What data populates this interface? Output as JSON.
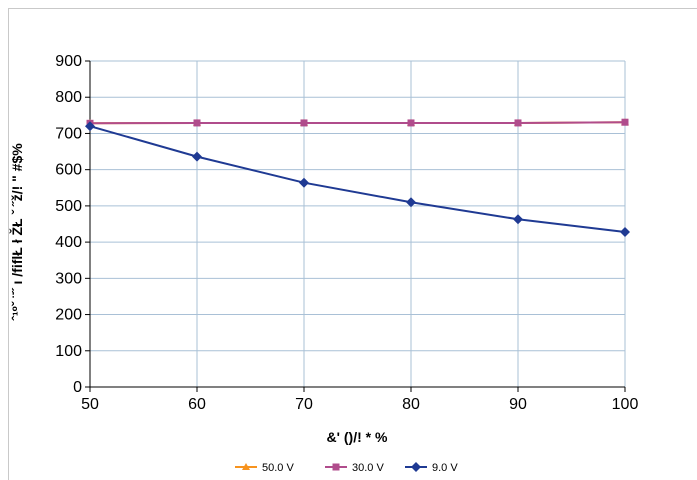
{
  "chart_data": {
    "type": "line",
    "title": "",
    "xlabel": "&' ()/! * %",
    "ylabel": "ˆ¹ºˇ ¨˝ ı /fiflŁ ł ŽŁ ˇ ˝ž/! \" #$%",
    "x": [
      50,
      60,
      70,
      80,
      90,
      100
    ],
    "xlim": [
      50,
      100
    ],
    "ylim": [
      0,
      900
    ],
    "xticks": [
      50,
      60,
      70,
      80,
      90,
      100
    ],
    "yticks": [
      0,
      100,
      200,
      300,
      400,
      500,
      600,
      700,
      800,
      900
    ],
    "grid": true,
    "legend_position": "bottom",
    "series": [
      {
        "name": "50.0 V",
        "values": [
          728,
          729,
          729,
          729,
          729,
          731
        ],
        "color": "#F7931E",
        "marker": "triangle"
      },
      {
        "name": "30.0 V",
        "values": [
          728,
          729,
          729,
          729,
          729,
          731
        ],
        "color": "#B04C8C",
        "marker": "square"
      },
      {
        "name": "9.0 V",
        "values": [
          720,
          636,
          564,
          510,
          463,
          428
        ],
        "color": "#1F3A93",
        "marker": "diamond"
      }
    ]
  }
}
